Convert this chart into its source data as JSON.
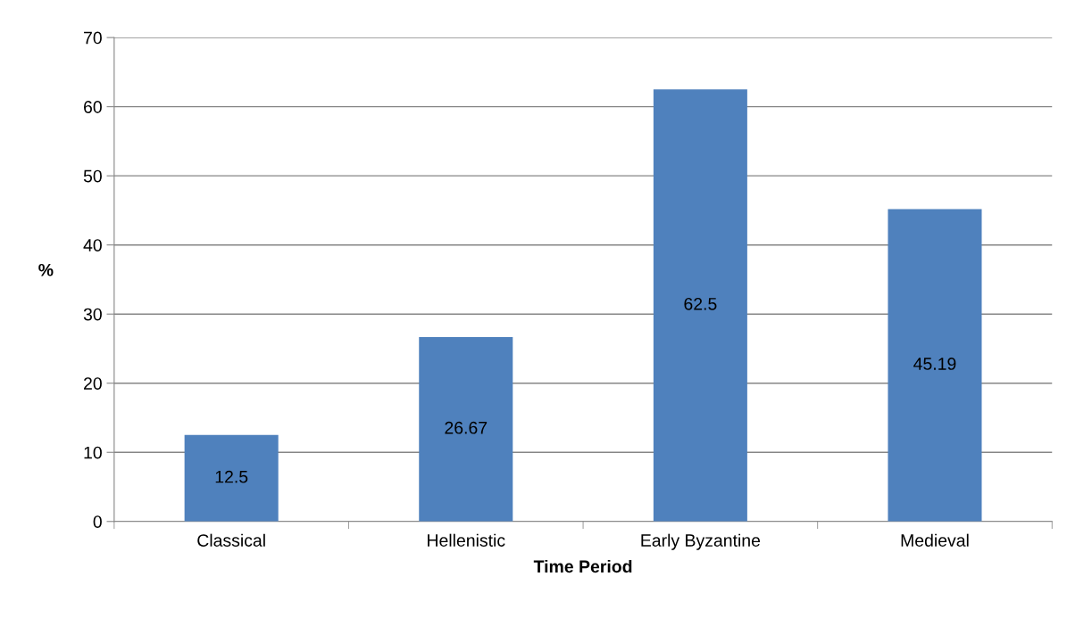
{
  "chart_data": {
    "type": "bar",
    "xlabel": "Time Period",
    "ylabel": "%",
    "categories": [
      "Classical",
      "Hellenistic",
      "Early Byzantine",
      "Medieval"
    ],
    "values": [
      12.5,
      26.67,
      62.5,
      45.19
    ],
    "color": "#4f81bd",
    "ylim": [
      0,
      70
    ],
    "yticks": [
      0,
      10,
      20,
      30,
      40,
      50,
      60,
      70
    ],
    "grid": "y",
    "data_labels": true
  }
}
